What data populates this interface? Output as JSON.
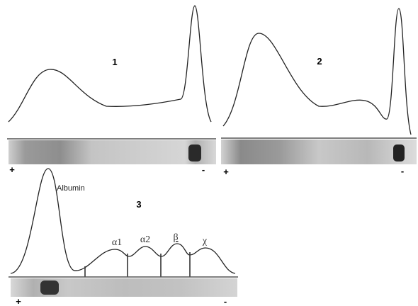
{
  "panels": [
    {
      "label": "1",
      "plus": "+",
      "minus": "-"
    },
    {
      "label": "2",
      "plus": "+",
      "minus": "-"
    },
    {
      "label": "3",
      "plus": "+",
      "minus": "-",
      "annotations": [
        "Albumin",
        "α1",
        "α2",
        "β",
        "χ"
      ]
    }
  ]
}
